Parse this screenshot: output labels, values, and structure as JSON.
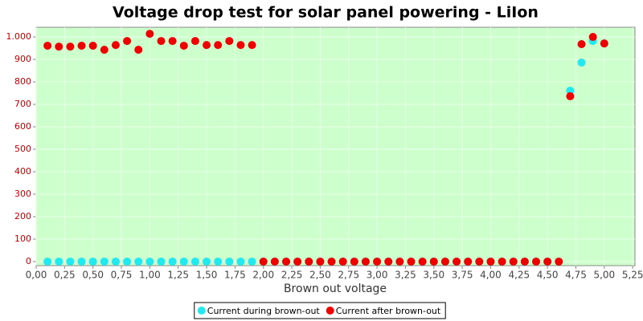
{
  "chart_data": {
    "type": "scatter",
    "title": "Voltage drop test for solar panel powering -  LiIon",
    "x_label": "Brown out voltage",
    "x": [
      0.1,
      0.2,
      0.3,
      0.4,
      0.5,
      0.6,
      0.7,
      0.8,
      0.9,
      1.0,
      1.1,
      1.2,
      1.3,
      1.4,
      1.5,
      1.6,
      1.7,
      1.8,
      1.9,
      2.0,
      2.1,
      2.2,
      2.3,
      2.4,
      2.5,
      2.6,
      2.7,
      2.8,
      2.9,
      3.0,
      3.1,
      3.2,
      3.3,
      3.4,
      3.5,
      3.6,
      3.7,
      3.8,
      3.9,
      4.0,
      4.1,
      4.2,
      4.3,
      4.4,
      4.5,
      4.6,
      4.7,
      4.8,
      4.9,
      5.0
    ],
    "series": [
      {
        "name": "Current during brown-out",
        "color": "#22e8f0",
        "values": [
          0,
          0,
          0,
          0,
          0,
          0,
          0,
          0,
          0,
          0,
          0,
          0,
          0,
          0,
          0,
          0,
          0,
          0,
          0,
          0,
          0,
          0,
          0,
          0,
          0,
          0,
          0,
          0,
          0,
          0,
          0,
          0,
          0,
          0,
          0,
          0,
          0,
          0,
          0,
          0,
          0,
          0,
          0,
          0,
          0,
          0,
          761,
          886,
          982,
          971
        ]
      },
      {
        "name": "Current after brown-out",
        "color": "#ee0000",
        "values": [
          961,
          957,
          957,
          961,
          961,
          943,
          964,
          982,
          943,
          1014,
          982,
          982,
          961,
          982,
          964,
          964,
          982,
          964,
          964,
          0,
          0,
          0,
          0,
          0,
          0,
          0,
          0,
          0,
          0,
          0,
          0,
          0,
          0,
          0,
          0,
          0,
          0,
          0,
          0,
          0,
          0,
          0,
          0,
          0,
          0,
          0,
          736,
          968,
          1000,
          971
        ]
      }
    ],
    "xlim": [
      0,
      5.27
    ],
    "ylim": [
      -18,
      1043
    ],
    "xticks": [
      {
        "value": 0,
        "label": "0,00"
      },
      {
        "value": 0.25,
        "label": "0,25"
      },
      {
        "value": 0.5,
        "label": "0,50"
      },
      {
        "value": 0.75,
        "label": "0,75"
      },
      {
        "value": 1,
        "label": "1,00"
      },
      {
        "value": 1.25,
        "label": "1,25"
      },
      {
        "value": 1.5,
        "label": "1,50"
      },
      {
        "value": 1.75,
        "label": "1,75"
      },
      {
        "value": 2,
        "label": "2,00"
      },
      {
        "value": 2.25,
        "label": "2,25"
      },
      {
        "value": 2.5,
        "label": "2,50"
      },
      {
        "value": 2.75,
        "label": "2,75"
      },
      {
        "value": 3,
        "label": "3,00"
      },
      {
        "value": 3.25,
        "label": "3,25"
      },
      {
        "value": 3.5,
        "label": "3,50"
      },
      {
        "value": 3.75,
        "label": "3,75"
      },
      {
        "value": 4,
        "label": "4,00"
      },
      {
        "value": 4.25,
        "label": "4,25"
      },
      {
        "value": 4.5,
        "label": "4,50"
      },
      {
        "value": 4.75,
        "label": "4,75"
      },
      {
        "value": 5,
        "label": "5,00"
      },
      {
        "value": 5.25,
        "label": "5,25"
      }
    ],
    "yticks": [
      0,
      100,
      200,
      300,
      400,
      500,
      600,
      700,
      800,
      900,
      {
        "value": 1000,
        "label": "1.000"
      }
    ],
    "grid": true,
    "legend": "bottom"
  }
}
